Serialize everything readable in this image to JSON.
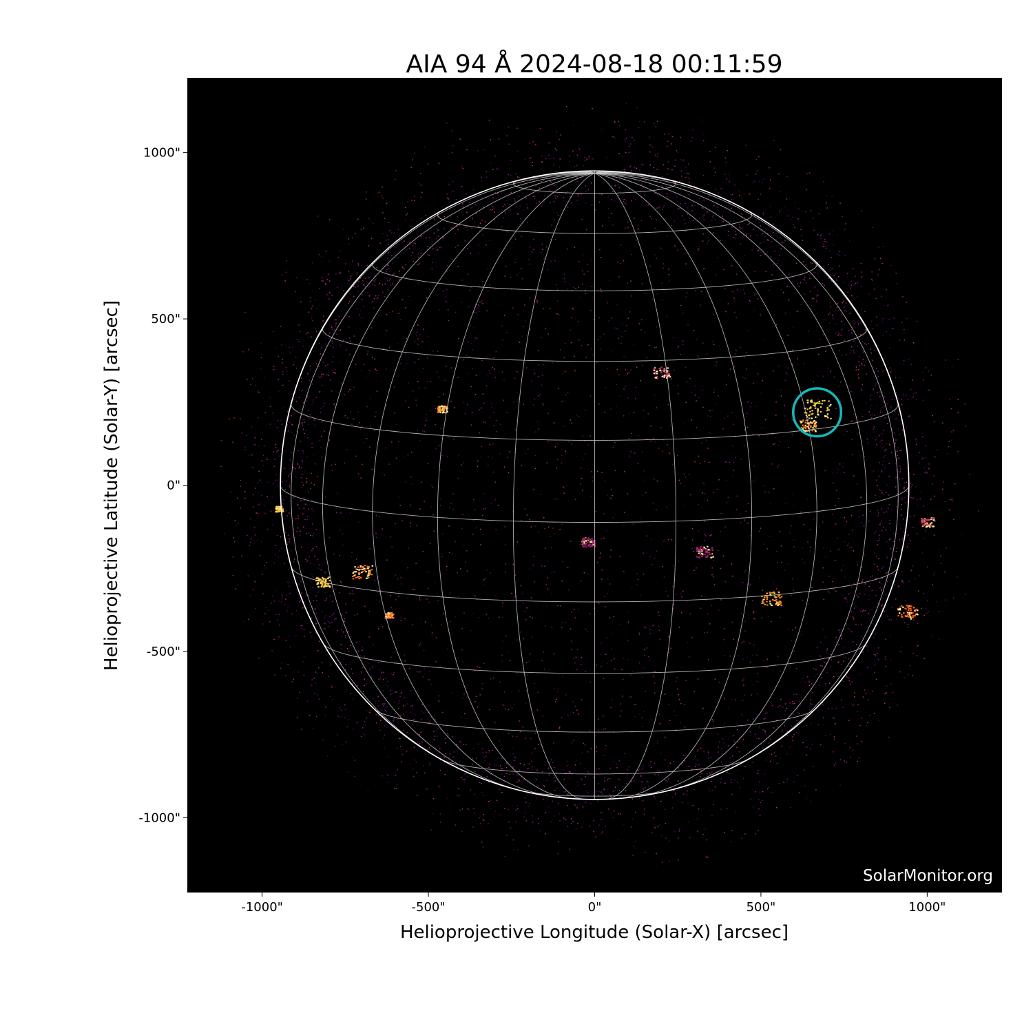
{
  "chart_data": {
    "type": "image",
    "title": "AIA 94 Å 2024-08-18 00:11:59",
    "xlabel": "Helioprojective Longitude (Solar-X) [arcsec]",
    "ylabel": "Helioprojective Latitude (Solar-Y) [arcsec]",
    "xlim": [
      -1225,
      1225
    ],
    "ylim": [
      -1225,
      1225
    ],
    "xticks": [
      -1000,
      -500,
      0,
      500,
      1000
    ],
    "yticks": [
      -1000,
      -500,
      0,
      500,
      1000
    ],
    "xtick_labels": [
      "-1000\"",
      "-500\"",
      "0\"",
      "500\"",
      "1000\""
    ],
    "ytick_labels": [
      "-1000\"",
      "-500\"",
      "0\"",
      "500\"",
      "1000\""
    ],
    "solar_radius_arcsec": 945,
    "grid": "heliographic, 15° spacing",
    "colormap": "AIA 94 (black-purple-orange-yellow)",
    "highlight_circle": {
      "x": 669,
      "y": 219,
      "radius_arcsec": 72,
      "color": "#17b8b8"
    },
    "watermark": "SolarMonitor.org"
  }
}
